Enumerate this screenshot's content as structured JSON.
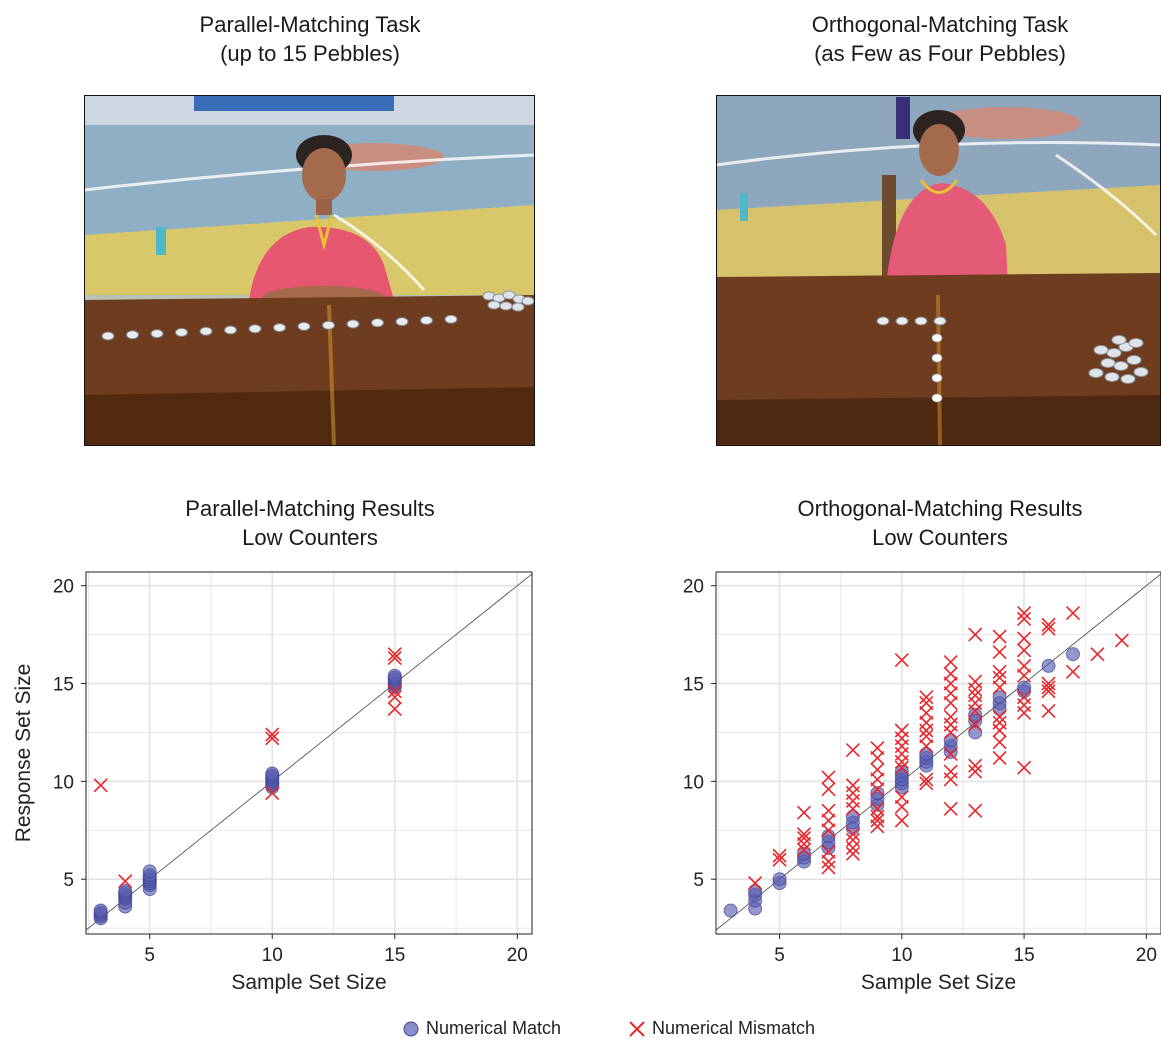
{
  "photos": {
    "left": {
      "title_line1": "Parallel-Matching Task",
      "title_line2": "(up to 15 Pebbles)",
      "pebbles_row": 15
    },
    "right": {
      "title_line1": "Orthogonal-Matching Task",
      "title_line2": "(as Few as Four Pebbles)",
      "pebbles_row": 4,
      "pebbles_column": 4
    }
  },
  "colors": {
    "match": "#5a5fb0",
    "mismatch": "#e8262b",
    "grid": "#e3e3e3",
    "diagonal": "#444444"
  },
  "legend": {
    "match_label": "Numerical Match",
    "mismatch_label": "Numerical Mismatch"
  },
  "chart_data": [
    {
      "type": "scatter",
      "title_line1": "Parallel-Matching Results",
      "title_line2": "Low Counters",
      "xlabel": "Sample Set Size",
      "ylabel": "Response Set Size",
      "xlim": [
        2.4,
        20.6
      ],
      "ylim": [
        2.2,
        20.7
      ],
      "xticks": [
        5,
        10,
        15,
        20
      ],
      "yticks": [
        5,
        10,
        15,
        20
      ],
      "grid": true,
      "reference_line": "y = x",
      "series": [
        {
          "name": "Numerical Match",
          "marker": "circle",
          "points": [
            [
              3,
              3.0
            ],
            [
              3,
              3.1
            ],
            [
              3,
              3.2
            ],
            [
              3,
              3.3
            ],
            [
              3,
              3.4
            ],
            [
              4,
              3.6
            ],
            [
              4,
              3.8
            ],
            [
              4,
              4.0
            ],
            [
              4,
              4.1
            ],
            [
              4,
              4.2
            ],
            [
              4,
              4.3
            ],
            [
              4,
              4.4
            ],
            [
              5,
              4.5
            ],
            [
              5,
              4.7
            ],
            [
              5,
              4.8
            ],
            [
              5,
              4.9
            ],
            [
              5,
              5.0
            ],
            [
              5,
              5.1
            ],
            [
              5,
              5.2
            ],
            [
              5,
              5.4
            ],
            [
              10,
              9.7
            ],
            [
              10,
              9.8
            ],
            [
              10,
              9.9
            ],
            [
              10,
              10.0
            ],
            [
              10,
              10.1
            ],
            [
              10,
              10.2
            ],
            [
              10,
              10.3
            ],
            [
              10,
              10.4
            ],
            [
              15,
              14.8
            ],
            [
              15,
              14.9
            ],
            [
              15,
              15.0
            ],
            [
              15,
              15.1
            ],
            [
              15,
              15.2
            ],
            [
              15,
              15.3
            ],
            [
              15,
              15.4
            ]
          ]
        },
        {
          "name": "Numerical Mismatch",
          "marker": "x",
          "points": [
            [
              3,
              9.8
            ],
            [
              4,
              4.9
            ],
            [
              10,
              9.4
            ],
            [
              10,
              12.2
            ],
            [
              10,
              12.4
            ],
            [
              15,
              13.7
            ],
            [
              15,
              14.3
            ],
            [
              15,
              14.6
            ],
            [
              15,
              16.3
            ],
            [
              15,
              16.5
            ]
          ]
        }
      ]
    },
    {
      "type": "scatter",
      "title_line1": "Orthogonal-Matching Results",
      "title_line2": "Low Counters",
      "xlabel": "Sample Set Size",
      "ylabel": "",
      "xlim": [
        2.4,
        20.6
      ],
      "ylim": [
        2.2,
        20.7
      ],
      "xticks": [
        5,
        10,
        15,
        20
      ],
      "yticks": [
        5,
        10,
        15,
        20
      ],
      "grid": true,
      "reference_line": "y = x",
      "series": [
        {
          "name": "Numerical Match",
          "marker": "circle",
          "points": [
            [
              3,
              3.4
            ],
            [
              4,
              3.5
            ],
            [
              4,
              3.9
            ],
            [
              4,
              4.2
            ],
            [
              4,
              4.4
            ],
            [
              5,
              4.8
            ],
            [
              5,
              5.0
            ],
            [
              6,
              5.9
            ],
            [
              6,
              6.1
            ],
            [
              6,
              6.3
            ],
            [
              7,
              6.6
            ],
            [
              7,
              6.9
            ],
            [
              7,
              7.2
            ],
            [
              8,
              7.6
            ],
            [
              8,
              7.9
            ],
            [
              8,
              8.2
            ],
            [
              9,
              8.8
            ],
            [
              9,
              9.1
            ],
            [
              9,
              9.4
            ],
            [
              10,
              9.7
            ],
            [
              10,
              9.9
            ],
            [
              10,
              10.1
            ],
            [
              10,
              10.3
            ],
            [
              10,
              10.5
            ],
            [
              11,
              10.8
            ],
            [
              11,
              11.0
            ],
            [
              11,
              11.2
            ],
            [
              11,
              11.4
            ],
            [
              12,
              11.5
            ],
            [
              12,
              11.8
            ],
            [
              12,
              12.1
            ],
            [
              13,
              12.5
            ],
            [
              13,
              13.1
            ],
            [
              13,
              13.4
            ],
            [
              14,
              13.7
            ],
            [
              14,
              14.0
            ],
            [
              14,
              14.3
            ],
            [
              15,
              14.6
            ],
            [
              15,
              14.8
            ],
            [
              16,
              15.9
            ],
            [
              17,
              16.5
            ]
          ]
        },
        {
          "name": "Numerical Mismatch",
          "marker": "x",
          "points": [
            [
              4,
              4.8
            ],
            [
              5,
              6.0
            ],
            [
              5,
              6.2
            ],
            [
              6,
              6.5
            ],
            [
              6,
              6.8
            ],
            [
              6,
              7.1
            ],
            [
              6,
              7.3
            ],
            [
              6,
              8.4
            ],
            [
              7,
              5.6
            ],
            [
              7,
              5.9
            ],
            [
              7,
              6.4
            ],
            [
              7,
              7.5
            ],
            [
              7,
              8.0
            ],
            [
              7,
              8.5
            ],
            [
              7,
              9.6
            ],
            [
              7,
              10.2
            ],
            [
              8,
              6.3
            ],
            [
              8,
              6.6
            ],
            [
              8,
              7.0
            ],
            [
              8,
              7.3
            ],
            [
              8,
              8.6
            ],
            [
              8,
              9.0
            ],
            [
              8,
              9.4
            ],
            [
              8,
              9.8
            ],
            [
              8,
              11.6
            ],
            [
              9,
              7.7
            ],
            [
              9,
              8.0
            ],
            [
              9,
              8.2
            ],
            [
              9,
              8.6
            ],
            [
              9,
              9.6
            ],
            [
              9,
              10.1
            ],
            [
              9,
              10.6
            ],
            [
              9,
              11.2
            ],
            [
              9,
              11.7
            ],
            [
              10,
              8.0
            ],
            [
              10,
              8.7
            ],
            [
              10,
              9.2
            ],
            [
              10,
              10.7
            ],
            [
              10,
              11.0
            ],
            [
              10,
              11.4
            ],
            [
              10,
              11.8
            ],
            [
              10,
              12.2
            ],
            [
              10,
              12.6
            ],
            [
              10,
              16.2
            ],
            [
              11,
              9.9
            ],
            [
              11,
              10.1
            ],
            [
              11,
              11.8
            ],
            [
              11,
              12.3
            ],
            [
              11,
              12.6
            ],
            [
              11,
              13.0
            ],
            [
              11,
              13.5
            ],
            [
              11,
              14.0
            ],
            [
              11,
              14.3
            ],
            [
              12,
              8.6
            ],
            [
              12,
              10.1
            ],
            [
              12,
              10.5
            ],
            [
              12,
              11.4
            ],
            [
              12,
              12.5
            ],
            [
              12,
              12.9
            ],
            [
              12,
              13.3
            ],
            [
              12,
              14.0
            ],
            [
              12,
              14.5
            ],
            [
              12,
              15.0
            ],
            [
              12,
              15.5
            ],
            [
              12,
              16.1
            ],
            [
              13,
              8.5
            ],
            [
              13,
              10.5
            ],
            [
              13,
              10.8
            ],
            [
              13,
              12.9
            ],
            [
              13,
              13.6
            ],
            [
              13,
              14.0
            ],
            [
              13,
              14.4
            ],
            [
              13,
              14.7
            ],
            [
              13,
              15.1
            ],
            [
              13,
              17.5
            ],
            [
              14,
              11.2
            ],
            [
              14,
              12.0
            ],
            [
              14,
              12.6
            ],
            [
              14,
              13.0
            ],
            [
              14,
              13.3
            ],
            [
              14,
              14.8
            ],
            [
              14,
              15.3
            ],
            [
              14,
              15.6
            ],
            [
              14,
              16.6
            ],
            [
              14,
              17.4
            ],
            [
              15,
              10.7
            ],
            [
              15,
              13.5
            ],
            [
              15,
              13.9
            ],
            [
              15,
              14.3
            ],
            [
              15,
              15.4
            ],
            [
              15,
              15.9
            ],
            [
              15,
              16.7
            ],
            [
              15,
              17.3
            ],
            [
              15,
              18.3
            ],
            [
              15,
              18.6
            ],
            [
              16,
              13.6
            ],
            [
              16,
              14.6
            ],
            [
              16,
              14.8
            ],
            [
              16,
              15.0
            ],
            [
              16,
              17.8
            ],
            [
              16,
              18.0
            ],
            [
              17,
              15.6
            ],
            [
              17,
              18.6
            ],
            [
              18,
              16.5
            ],
            [
              19,
              17.2
            ]
          ]
        }
      ]
    }
  ]
}
